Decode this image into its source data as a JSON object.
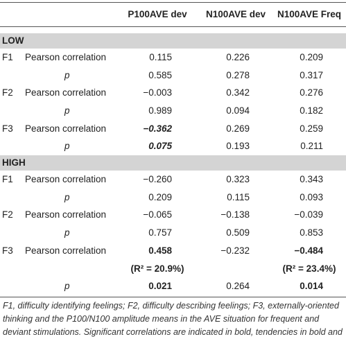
{
  "table": {
    "headers": [
      "P100AVE dev",
      "N100AVE dev",
      "N100AVE Freq"
    ],
    "sections": [
      {
        "label": "LOW",
        "rows": [
          {
            "factor": "F1",
            "measure": "Pearson correlation",
            "cells": [
              {
                "text": "0.115"
              },
              {
                "text": "0.226"
              },
              {
                "text": "0.209"
              }
            ]
          },
          {
            "factor": null,
            "measure": "p",
            "cells": [
              {
                "text": "0.585"
              },
              {
                "text": "0.278"
              },
              {
                "text": "0.317"
              }
            ]
          },
          {
            "factor": "F2",
            "measure": "Pearson correlation",
            "cells": [
              {
                "text": "−0.003"
              },
              {
                "text": "0.342"
              },
              {
                "text": "0.276"
              }
            ]
          },
          {
            "factor": null,
            "measure": "p",
            "cells": [
              {
                "text": "0.989"
              },
              {
                "text": "0.094"
              },
              {
                "text": "0.182"
              }
            ]
          },
          {
            "factor": "F3",
            "measure": "Pearson correlation",
            "cells": [
              {
                "text": "−0.362",
                "style": "bold-italic"
              },
              {
                "text": "0.269"
              },
              {
                "text": "0.259"
              }
            ]
          },
          {
            "factor": null,
            "measure": "p",
            "cells": [
              {
                "text": "0.075",
                "style": "bold-italic"
              },
              {
                "text": "0.193"
              },
              {
                "text": "0.211"
              }
            ]
          }
        ]
      },
      {
        "label": "HIGH",
        "rows": [
          {
            "factor": "F1",
            "measure": "Pearson correlation",
            "cells": [
              {
                "text": "−0.260"
              },
              {
                "text": "0.323"
              },
              {
                "text": "0.343"
              }
            ]
          },
          {
            "factor": null,
            "measure": "p",
            "cells": [
              {
                "text": "0.209"
              },
              {
                "text": "0.115"
              },
              {
                "text": "0.093"
              }
            ]
          },
          {
            "factor": "F2",
            "measure": "Pearson correlation",
            "cells": [
              {
                "text": "−0.065"
              },
              {
                "text": "−0.138"
              },
              {
                "text": "−0.039"
              }
            ]
          },
          {
            "factor": null,
            "measure": "p",
            "cells": [
              {
                "text": "0.757"
              },
              {
                "text": "0.509"
              },
              {
                "text": "0.853"
              }
            ]
          },
          {
            "factor": "F3",
            "measure": "Pearson correlation",
            "cells": [
              {
                "text": "0.458",
                "style": "bold"
              },
              {
                "text": "−0.232"
              },
              {
                "text": "−0.484",
                "style": "bold"
              }
            ]
          },
          {
            "factor": null,
            "measure": null,
            "cells": [
              {
                "text": "(R² = 20.9%)",
                "style": "bold"
              },
              null,
              {
                "text": "(R² = 23.4%)",
                "style": "bold"
              }
            ]
          },
          {
            "factor": null,
            "measure": "p",
            "cells": [
              {
                "text": "0.021",
                "style": "bold"
              },
              {
                "text": "0.264"
              },
              {
                "text": "0.014",
                "style": "bold"
              }
            ]
          }
        ]
      }
    ],
    "footnote": "F1, difficulty identifying feelings; F2, difficulty describing feelings; F3, externally-oriented thinking and the P100/N100 amplitude means in the AVE situation for frequent and deviant stimulations. Significant correlations are indicated in bold, tendencies in bold and italic."
  }
}
